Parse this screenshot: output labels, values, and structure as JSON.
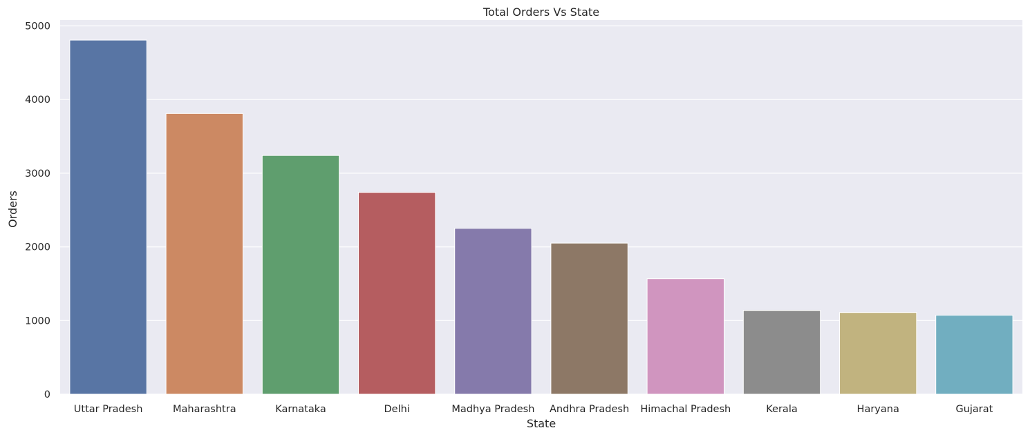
{
  "chart_data": {
    "type": "bar",
    "title": "Total Orders Vs State",
    "xlabel": "State",
    "ylabel": "Orders",
    "categories": [
      "Uttar Pradesh",
      "Maharashtra",
      "Karnataka",
      "Delhi",
      "Madhya Pradesh",
      "Andhra Pradesh",
      "Himachal Pradesh",
      "Kerala",
      "Haryana",
      "Gujarat"
    ],
    "values": [
      4807,
      3811,
      3241,
      2740,
      2252,
      2051,
      1568,
      1137,
      1109,
      1072
    ],
    "colors": [
      "#5875a4",
      "#cc8963",
      "#5f9e6e",
      "#b55d60",
      "#857aab",
      "#8d7866",
      "#d095bf",
      "#8c8c8c",
      "#c1b37f",
      "#71aec0"
    ],
    "ylim": [
      0,
      5000
    ],
    "yticks": [
      0,
      1000,
      2000,
      3000,
      4000,
      5000
    ],
    "grid": true,
    "background": "#eaeaf2"
  }
}
